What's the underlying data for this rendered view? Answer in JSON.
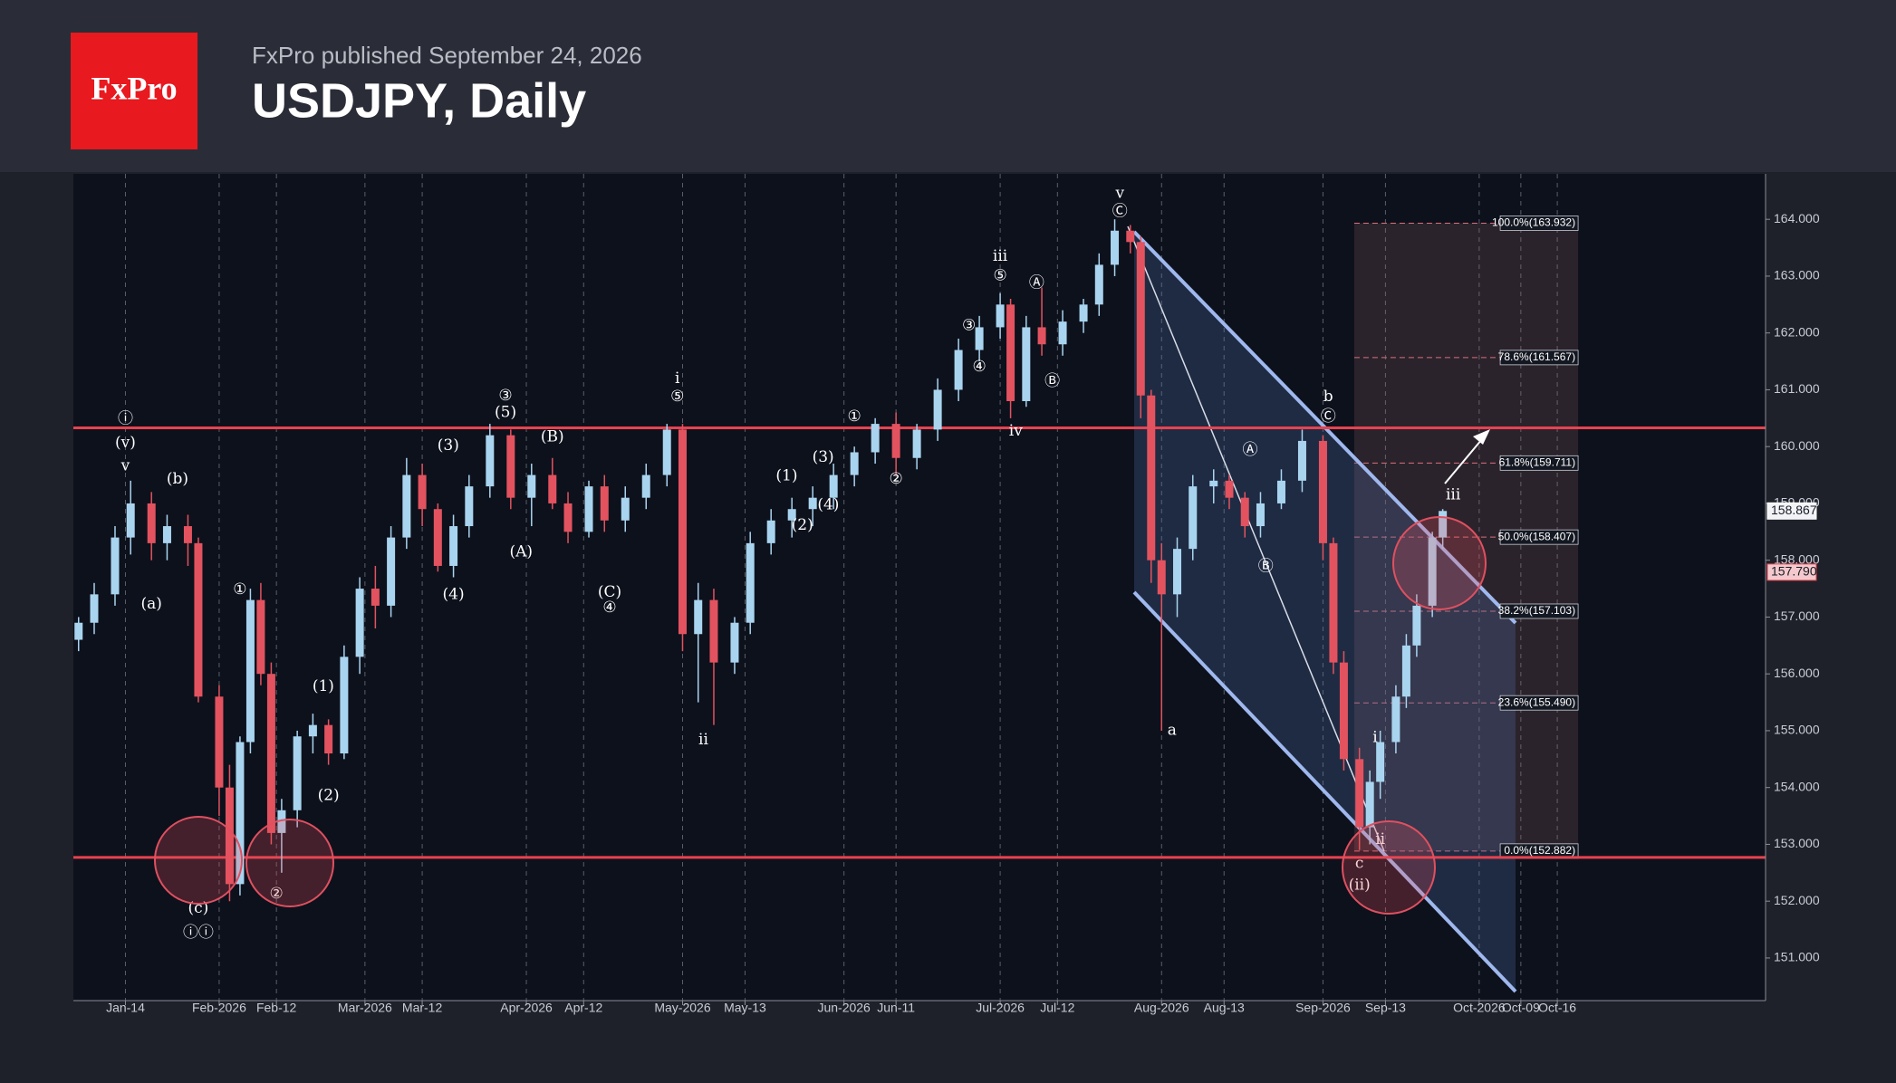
{
  "header": {
    "logo": "FxPro",
    "publisher": "FxPro published September 24, 2026",
    "title": "USDJPY, Daily"
  },
  "chart_data": {
    "type": "candlestick",
    "x": [
      "2026-01-05",
      "2026-01-08",
      "2026-01-12",
      "2026-01-15",
      "2026-01-19",
      "2026-01-22",
      "2026-01-26",
      "2026-01-28",
      "2026-02-01",
      "2026-02-03",
      "2026-02-05",
      "2026-02-07",
      "2026-02-09",
      "2026-02-11",
      "2026-02-13",
      "2026-02-16",
      "2026-02-19",
      "2026-02-22",
      "2026-02-25",
      "2026-02-28",
      "2026-03-03",
      "2026-03-06",
      "2026-03-09",
      "2026-03-12",
      "2026-03-15",
      "2026-03-18",
      "2026-03-21",
      "2026-03-25",
      "2026-03-29",
      "2026-04-02",
      "2026-04-06",
      "2026-04-09",
      "2026-04-13",
      "2026-04-16",
      "2026-04-20",
      "2026-04-24",
      "2026-04-28",
      "2026-05-01",
      "2026-05-04",
      "2026-05-07",
      "2026-05-11",
      "2026-05-14",
      "2026-05-18",
      "2026-05-22",
      "2026-05-26",
      "2026-05-30",
      "2026-06-03",
      "2026-06-07",
      "2026-06-11",
      "2026-06-15",
      "2026-06-19",
      "2026-06-23",
      "2026-06-27",
      "2026-07-01",
      "2026-07-03",
      "2026-07-06",
      "2026-07-09",
      "2026-07-13",
      "2026-07-17",
      "2026-07-20",
      "2026-07-23",
      "2026-07-26",
      "2026-07-28",
      "2026-07-30",
      "2026-08-01",
      "2026-08-04",
      "2026-08-07",
      "2026-08-11",
      "2026-08-14",
      "2026-08-17",
      "2026-08-20",
      "2026-08-24",
      "2026-08-28",
      "2026-09-01",
      "2026-09-03",
      "2026-09-05",
      "2026-09-08",
      "2026-09-10",
      "2026-09-12",
      "2026-09-15",
      "2026-09-17",
      "2026-09-19",
      "2026-09-22",
      "2026-09-24"
    ],
    "open": [
      156.6,
      156.9,
      157.4,
      158.4,
      159.0,
      158.3,
      158.6,
      158.3,
      155.6,
      154.0,
      152.3,
      154.8,
      157.3,
      156.0,
      153.2,
      153.6,
      154.9,
      155.1,
      154.6,
      156.3,
      157.5,
      157.2,
      158.4,
      159.5,
      158.9,
      157.9,
      158.6,
      159.3,
      160.2,
      159.1,
      159.5,
      159.0,
      158.5,
      159.3,
      158.7,
      159.1,
      159.5,
      160.3,
      156.7,
      157.3,
      156.2,
      156.9,
      158.3,
      158.7,
      158.9,
      159.1,
      159.5,
      159.9,
      160.4,
      159.8,
      160.3,
      161.0,
      161.7,
      162.1,
      162.5,
      160.8,
      162.1,
      161.8,
      162.2,
      162.5,
      163.2,
      163.8,
      163.6,
      160.9,
      158.0,
      157.4,
      158.2,
      159.3,
      159.4,
      159.1,
      158.6,
      159.0,
      159.4,
      160.1,
      158.3,
      156.2,
      154.5,
      153.3,
      154.1,
      154.8,
      155.6,
      156.5,
      157.2,
      158.4
    ],
    "high": [
      157.0,
      157.6,
      158.6,
      159.4,
      159.2,
      158.8,
      158.8,
      158.4,
      155.8,
      154.4,
      154.9,
      157.5,
      157.6,
      156.2,
      153.8,
      155.0,
      155.3,
      155.2,
      156.5,
      157.7,
      157.9,
      158.6,
      159.8,
      159.7,
      159.0,
      158.8,
      159.5,
      160.4,
      160.3,
      159.7,
      159.8,
      159.2,
      159.4,
      159.5,
      159.3,
      159.7,
      160.4,
      160.4,
      157.6,
      157.5,
      157.0,
      158.5,
      158.9,
      159.1,
      159.3,
      159.7,
      160.0,
      160.5,
      160.6,
      160.4,
      161.2,
      161.9,
      162.3,
      162.7,
      162.6,
      162.3,
      162.8,
      162.4,
      162.6,
      163.4,
      164.0,
      163.9,
      163.7,
      161.0,
      158.3,
      158.4,
      159.5,
      159.6,
      159.5,
      159.2,
      159.2,
      159.6,
      160.3,
      160.2,
      158.4,
      156.4,
      154.7,
      154.3,
      155.0,
      155.8,
      156.7,
      157.4,
      158.5,
      158.9
    ],
    "low": [
      156.4,
      156.7,
      157.2,
      158.1,
      158.0,
      158.0,
      157.9,
      155.5,
      153.5,
      152.0,
      152.1,
      154.6,
      155.8,
      153.0,
      152.5,
      153.3,
      154.6,
      154.4,
      154.5,
      156.0,
      156.8,
      157.0,
      158.2,
      158.6,
      157.8,
      157.7,
      158.4,
      159.1,
      158.9,
      158.6,
      158.9,
      158.3,
      158.4,
      158.5,
      158.5,
      158.9,
      159.3,
      156.4,
      155.5,
      155.1,
      156.0,
      156.7,
      158.1,
      158.4,
      158.6,
      158.9,
      159.3,
      159.7,
      159.5,
      159.6,
      160.1,
      160.8,
      161.5,
      161.9,
      160.5,
      160.7,
      161.6,
      161.6,
      162.0,
      162.3,
      163.0,
      163.4,
      160.5,
      157.6,
      155.0,
      157.0,
      158.0,
      159.0,
      158.9,
      158.4,
      158.4,
      158.9,
      159.2,
      158.0,
      156.0,
      154.3,
      152.9,
      153.0,
      153.8,
      154.6,
      155.4,
      156.3,
      157.0,
      158.2
    ],
    "close": [
      156.9,
      157.4,
      158.4,
      159.0,
      158.3,
      158.6,
      158.3,
      155.6,
      154.0,
      152.3,
      154.8,
      157.3,
      156.0,
      153.2,
      153.6,
      154.9,
      155.1,
      154.6,
      156.3,
      157.5,
      157.2,
      158.4,
      159.5,
      158.9,
      157.9,
      158.6,
      159.3,
      160.2,
      159.1,
      159.5,
      159.0,
      158.5,
      159.3,
      158.7,
      159.1,
      159.5,
      160.3,
      156.7,
      157.3,
      156.2,
      156.9,
      158.3,
      158.7,
      158.9,
      159.1,
      159.5,
      159.9,
      160.4,
      159.8,
      160.3,
      161.0,
      161.7,
      162.1,
      162.5,
      160.8,
      162.1,
      161.8,
      162.2,
      162.5,
      163.2,
      163.8,
      163.6,
      160.9,
      158.0,
      157.4,
      158.2,
      159.3,
      159.4,
      159.1,
      158.6,
      159.0,
      159.4,
      160.1,
      158.3,
      156.2,
      154.5,
      153.3,
      154.1,
      154.8,
      155.6,
      156.5,
      157.2,
      158.4,
      158.867
    ],
    "up_color": "#a9d4ef",
    "down_color": "#e2535f",
    "xlim": [
      "2026-01-04",
      "2026-11-25"
    ],
    "xticks": [
      {
        "value": "2026-01-14",
        "label": "Jan-14"
      },
      {
        "value": "2026-02-01",
        "label": "Feb-2026"
      },
      {
        "value": "2026-02-12",
        "label": "Feb-12"
      },
      {
        "value": "2026-03-01",
        "label": "Mar-2026"
      },
      {
        "value": "2026-03-12",
        "label": "Mar-12"
      },
      {
        "value": "2026-04-01",
        "label": "Apr-2026"
      },
      {
        "value": "2026-04-12",
        "label": "Apr-12"
      },
      {
        "value": "2026-05-01",
        "label": "May-2026"
      },
      {
        "value": "2026-05-13",
        "label": "May-13"
      },
      {
        "value": "2026-06-01",
        "label": "Jun-2026"
      },
      {
        "value": "2026-06-11",
        "label": "Jun-11"
      },
      {
        "value": "2026-07-01",
        "label": "Jul-2026"
      },
      {
        "value": "2026-07-12",
        "label": "Jul-12"
      },
      {
        "value": "2026-08-01",
        "label": "Aug-2026"
      },
      {
        "value": "2026-08-13",
        "label": "Aug-13"
      },
      {
        "value": "2026-09-01",
        "label": "Sep-2026"
      },
      {
        "value": "2026-09-13",
        "label": "Sep-13"
      },
      {
        "value": "2026-10-01",
        "label": "Oct-2026"
      },
      {
        "value": "2026-10-09",
        "label": "Oct-09"
      },
      {
        "value": "2026-10-16",
        "label": "Oct-16"
      }
    ],
    "ylim": [
      150.25,
      164.8
    ],
    "yticks": [
      {
        "value": 151,
        "label": "151.000"
      },
      {
        "value": 152,
        "label": "152.000"
      },
      {
        "value": 153,
        "label": "153.000"
      },
      {
        "value": 154,
        "label": "154.000"
      },
      {
        "value": 155,
        "label": "155.000"
      },
      {
        "value": 156,
        "label": "156.000"
      },
      {
        "value": 157,
        "label": "157.000"
      },
      {
        "value": 158,
        "label": "158.000"
      },
      {
        "value": 159,
        "label": "159.000"
      },
      {
        "value": 160,
        "label": "160.000"
      },
      {
        "value": 161,
        "label": "161.000"
      },
      {
        "value": 162,
        "label": "162.000"
      },
      {
        "value": 163,
        "label": "163.000"
      },
      {
        "value": 164,
        "label": "164.000"
      }
    ],
    "grid": true,
    "levels": [
      160.33,
      152.77
    ],
    "level_color": "#e8424f",
    "fib_range": [
      "2026-09-07",
      "2026-10-20"
    ],
    "fib_levels": [
      {
        "value": 163.932,
        "label": "100.0%(163.932)"
      },
      {
        "value": 161.567,
        "label": "78.6%(161.567)"
      },
      {
        "value": 159.711,
        "label": "61.8%(159.711)"
      },
      {
        "value": 158.407,
        "label": "50.0%(158.407)"
      },
      {
        "value": 157.103,
        "label": "38.2%(157.103)"
      },
      {
        "value": 155.49,
        "label": "23.6%(155.490)"
      },
      {
        "value": 152.882,
        "label": "0.0%(152.882)"
      }
    ],
    "price_tags": [
      158.867,
      {
        "value": 157.79,
        "label": "157.790"
      }
    ],
    "annotations": [
      {
        "text": "ⓘ",
        "x": "2026-01-14",
        "y": 160.48
      },
      {
        "text": "(v)",
        "x": "2026-01-14",
        "y": 160.06
      },
      {
        "text": "v",
        "x": "2026-01-14",
        "y": 159.65
      },
      {
        "text": "(b)",
        "x": "2026-01-24",
        "y": 159.42
      },
      {
        "text": "(a)",
        "x": "2026-01-19",
        "y": 157.22
      },
      {
        "text": "(c)",
        "x": "2026-01-28",
        "y": 151.87
      },
      {
        "text": "ⓘⓘ",
        "x": "2026-01-28",
        "y": 151.44
      },
      {
        "text": "①",
        "x": "2026-02-05",
        "y": 157.48
      },
      {
        "text": "②",
        "x": "2026-02-12",
        "y": 152.12
      },
      {
        "text": "(1)",
        "x": "2026-02-21",
        "y": 155.77
      },
      {
        "text": "(2)",
        "x": "2026-02-22",
        "y": 153.85
      },
      {
        "text": "(3)",
        "x": "2026-03-17",
        "y": 160.01
      },
      {
        "text": "(4)",
        "x": "2026-03-18",
        "y": 157.39
      },
      {
        "text": "③",
        "x": "2026-03-28",
        "y": 160.89
      },
      {
        "text": "(5)",
        "x": "2026-03-28",
        "y": 160.59
      },
      {
        "text": "(A)",
        "x": "2026-03-31",
        "y": 158.14
      },
      {
        "text": "(B)",
        "x": "2026-04-06",
        "y": 160.16
      },
      {
        "text": "(C)",
        "x": "2026-04-17",
        "y": 157.43
      },
      {
        "text": "④",
        "x": "2026-04-17",
        "y": 157.16
      },
      {
        "text": "i",
        "x": "2026-04-30",
        "y": 161.19
      },
      {
        "text": "⑤",
        "x": "2026-04-30",
        "y": 160.87
      },
      {
        "text": "ii",
        "x": "2026-05-05",
        "y": 154.83
      },
      {
        "text": "(1)",
        "x": "2026-05-21",
        "y": 159.48
      },
      {
        "text": "(2)",
        "x": "2026-05-24",
        "y": 158.61
      },
      {
        "text": "(3)",
        "x": "2026-05-28",
        "y": 159.8
      },
      {
        "text": "(4)",
        "x": "2026-05-29",
        "y": 158.97
      },
      {
        "text": "①",
        "x": "2026-06-03",
        "y": 160.52
      },
      {
        "text": "②",
        "x": "2026-06-11",
        "y": 159.42
      },
      {
        "text": "③",
        "x": "2026-06-25",
        "y": 162.12
      },
      {
        "text": "④",
        "x": "2026-06-27",
        "y": 161.4
      },
      {
        "text": "iii",
        "x": "2026-07-01",
        "y": 163.34
      },
      {
        "text": "⑤",
        "x": "2026-07-01",
        "y": 163.0
      },
      {
        "text": "iv",
        "x": "2026-07-04",
        "y": 160.27
      },
      {
        "text": "Ⓐ",
        "x": "2026-07-08",
        "y": 162.87
      },
      {
        "text": "Ⓑ",
        "x": "2026-07-11",
        "y": 161.14
      },
      {
        "text": "v",
        "x": "2026-07-24",
        "y": 164.45
      },
      {
        "text": "Ⓒ",
        "x": "2026-07-24",
        "y": 164.13
      },
      {
        "text": "a",
        "x": "2026-08-03",
        "y": 155.0
      },
      {
        "text": "Ⓐ",
        "x": "2026-08-18",
        "y": 159.93
      },
      {
        "text": "Ⓑ",
        "x": "2026-08-21",
        "y": 157.88
      },
      {
        "text": "b",
        "x": "2026-09-02",
        "y": 160.87
      },
      {
        "text": "Ⓒ",
        "x": "2026-09-02",
        "y": 160.52
      },
      {
        "text": "i",
        "x": "2026-09-11",
        "y": 154.87
      },
      {
        "text": "ii",
        "x": "2026-09-12",
        "y": 153.08
      },
      {
        "text": "c",
        "x": "2026-09-08",
        "y": 152.66
      },
      {
        "text": "(ii)",
        "x": "2026-09-08",
        "y": 152.27
      },
      {
        "text": "iii",
        "x": "2026-09-26",
        "y": 159.14
      }
    ]
  }
}
